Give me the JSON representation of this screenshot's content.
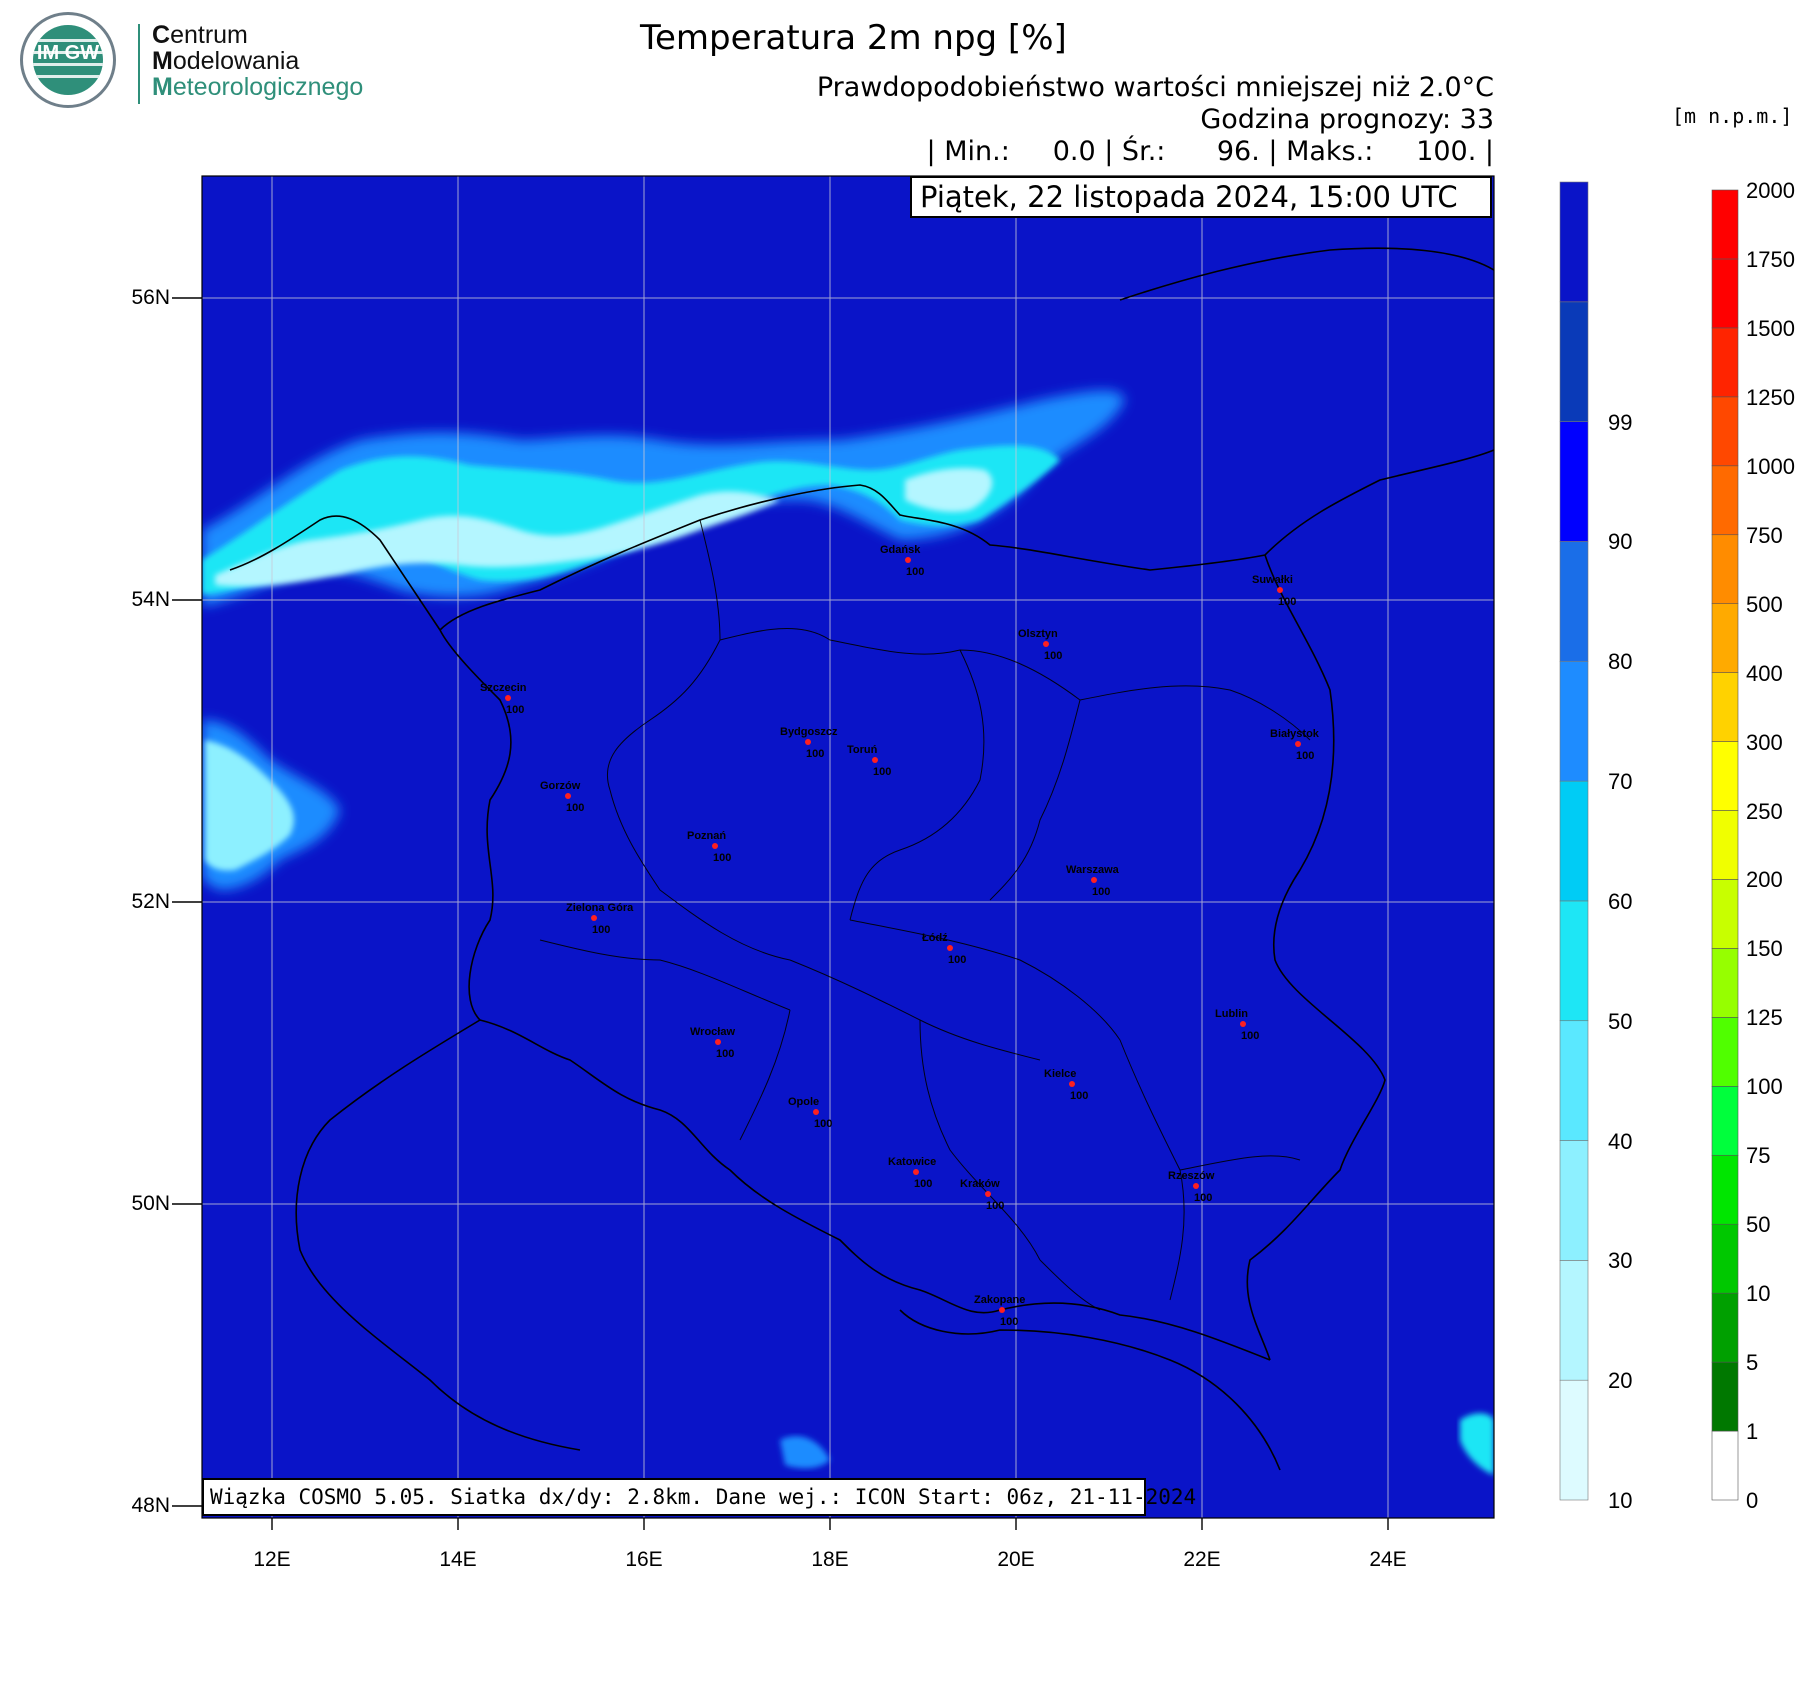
{
  "logo": {
    "letters": "IM GW",
    "line1_initial": "C",
    "line1_rest": "entrum",
    "line2_initial": "M",
    "line2_rest": "odelowania",
    "line3_initial": "M",
    "line3_rest": "eteorologicznego"
  },
  "title": "Temperatura 2m npg [%]",
  "subtitle": "Prawdopodobieństwo wartości mniejszej niż 2.0°C",
  "forecast_hour": "Godzina prognozy: 33",
  "stats": "| Min.:     0.0 | Śr.:      96. | Maks.:     100. |",
  "date_line": "Piątek, 22 listopada 2024, 15:00 UTC",
  "footer": "Wiązka COSMO 5.05. Siatka dx/dy: 2.8km. Dane wej.: ICON Start: 06z, 21-11-2024",
  "height_unit": "[m n.p.m.]",
  "axes": {
    "lat_labels": [
      "56N",
      "54N",
      "52N",
      "50N",
      "48N"
    ],
    "lon_labels": [
      "12E",
      "14E",
      "16E",
      "18E",
      "20E",
      "22E",
      "24E"
    ]
  },
  "colors": {
    "map_background": "#0a14c8",
    "probability_scale": [
      "#ddfbff",
      "#b4f6ff",
      "#8df0ff",
      "#5ae8ff",
      "#1ee6f5",
      "#00ccf5",
      "#1e8cff",
      "#1a6ee8",
      "#0000ff",
      "#0a3ab8",
      "#0a14c8"
    ],
    "height_scale": [
      "#ffffff",
      "#007800",
      "#00a000",
      "#00c800",
      "#00e600",
      "#00ff3c",
      "#50ff00",
      "#96ff00",
      "#c8ff00",
      "#f0ff00",
      "#ffff00",
      "#ffd200",
      "#ffaa00",
      "#ff8c00",
      "#ff6a00",
      "#ff4800",
      "#ff2400",
      "#ff0000"
    ]
  },
  "probability_legend": [
    "10",
    "20",
    "30",
    "40",
    "50",
    "60",
    "70",
    "80",
    "90",
    "99"
  ],
  "height_legend": [
    "0",
    "1",
    "5",
    "10",
    "50",
    "75",
    "100",
    "125",
    "150",
    "200",
    "250",
    "300",
    "400",
    "500",
    "750",
    "1000",
    "1250",
    "1500",
    "1750",
    "2000"
  ],
  "cities": [
    {
      "name": "Gdańsk",
      "value": "100"
    },
    {
      "name": "Suwałki",
      "value": "100"
    },
    {
      "name": "Olsztyn",
      "value": "100"
    },
    {
      "name": "Szczecin",
      "value": "100"
    },
    {
      "name": "Bydgoszcz",
      "value": "100"
    },
    {
      "name": "Toruń",
      "value": "100"
    },
    {
      "name": "Białystok",
      "value": "100"
    },
    {
      "name": "Gorzów",
      "value": "100"
    },
    {
      "name": "Poznań",
      "value": "100"
    },
    {
      "name": "Warszawa",
      "value": "100"
    },
    {
      "name": "Zielona Góra",
      "value": "100"
    },
    {
      "name": "Łódź",
      "value": "100"
    },
    {
      "name": "Lublin",
      "value": "100"
    },
    {
      "name": "Wrocław",
      "value": "100"
    },
    {
      "name": "Kielce",
      "value": "100"
    },
    {
      "name": "Opole",
      "value": "100"
    },
    {
      "name": "Katowice",
      "value": "100"
    },
    {
      "name": "Kraków",
      "value": "100"
    },
    {
      "name": "Rzeszów",
      "value": "100"
    },
    {
      "name": "Zakopane",
      "value": "100"
    }
  ]
}
